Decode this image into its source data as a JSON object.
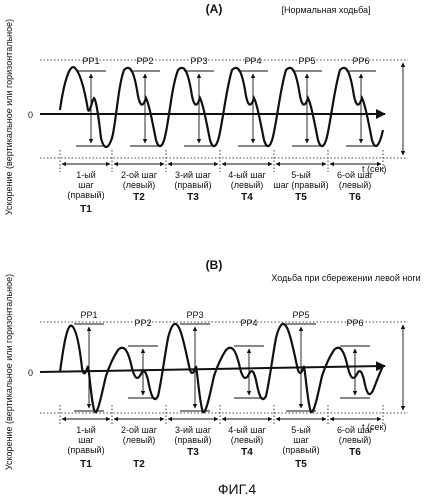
{
  "figure_caption": "ФИГ.4",
  "panel_a": {
    "label": "(A)",
    "subtitle": "[Нормальная ходьба]",
    "y_axis_label": "Ускорение (вертикальное или горизонтальное)",
    "zero_label": "0",
    "time_label": "t (сек)",
    "peaks": [
      "PP1",
      "PP2",
      "PP3",
      "PP4",
      "PP5",
      "PP6"
    ],
    "steps": [
      {
        "line1": "1-ый",
        "line2": "шаг",
        "line3": "(правый)",
        "period": "T1"
      },
      {
        "line1": "2-ой шаг",
        "line2": "(левый)",
        "line3": "",
        "period": "T2"
      },
      {
        "line1": "3-ий шаг",
        "line2": "(правый)",
        "line3": "",
        "period": "T3"
      },
      {
        "line1": "4-ый шаг",
        "line2": "(левый)",
        "line3": "",
        "period": "T4"
      },
      {
        "line1": "5-ый",
        "line2": "шаг (правый)",
        "line3": "",
        "period": "T5"
      },
      {
        "line1": "6-ой шаг",
        "line2": "(левый)",
        "line3": "",
        "period": "T6"
      }
    ]
  },
  "panel_b": {
    "label": "(B)",
    "subtitle": "Ходьба при сбережении левой ноги",
    "y_axis_label": "Ускорение (вертикальное или горизонтальное)",
    "zero_label": "0",
    "time_label": "t (сек)",
    "peaks": [
      "PP1",
      "PP2",
      "PP3",
      "PP4",
      "PP5",
      "PP6"
    ],
    "steps": [
      {
        "line1": "1-ый",
        "line2": "шаг",
        "line3": "(правый)",
        "period": "T1"
      },
      {
        "line1": "2-ой шаг",
        "line2": "(левый)",
        "line3": "",
        "period": "T2"
      },
      {
        "line1": "3-ий шаг",
        "line2": "(правый)",
        "line3": "",
        "period": "T3"
      },
      {
        "line1": "4-ый шаг",
        "line2": "(левый)",
        "line3": "",
        "period": "T4"
      },
      {
        "line1": "5-ый",
        "line2": "шаг",
        "line3": "(правый)",
        "period": "T5"
      },
      {
        "line1": "6-ой шаг",
        "line2": "(левый)",
        "line3": "",
        "period": "T6"
      }
    ]
  }
}
